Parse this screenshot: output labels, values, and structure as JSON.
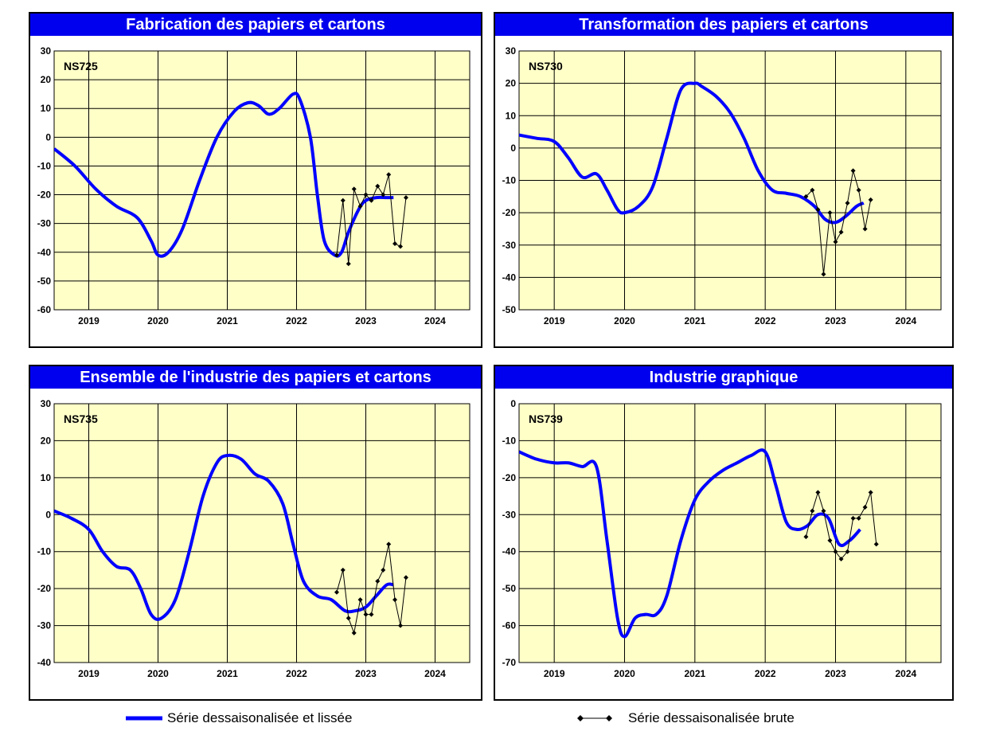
{
  "legend": {
    "smooth": "Série dessaisonalisée et lissée",
    "raw": "Série dessaisonalisée brute"
  },
  "colors": {
    "smooth": "#0000ff",
    "raw": "#000000",
    "plot_bg": "#ffffc8",
    "title_bg": "#0000ee"
  },
  "chart_data": [
    {
      "type": "line",
      "title": "Fabrication des papiers et cartons",
      "code": "NS725",
      "ylim": [
        -60,
        30
      ],
      "yticks": [
        30,
        20,
        10,
        0,
        -10,
        -20,
        -30,
        -40,
        -50,
        -60
      ],
      "xlim": [
        2018.5,
        2024.5
      ],
      "xtick_labels": [
        "2019",
        "2020",
        "2021",
        "2022",
        "2023",
        "2024"
      ],
      "grid": true,
      "series": [
        {
          "name": "Série dessaisonalisée et lissée",
          "style": "smooth",
          "x": [
            2018.5,
            2018.8,
            2019.1,
            2019.4,
            2019.7,
            2019.9,
            2020.0,
            2020.15,
            2020.35,
            2020.6,
            2020.85,
            2021.1,
            2021.3,
            2021.45,
            2021.6,
            2021.75,
            2021.95,
            2022.05,
            2022.2,
            2022.3,
            2022.4,
            2022.55,
            2022.65,
            2022.75,
            2022.9,
            2023.0,
            2023.15,
            2023.3,
            2023.4
          ],
          "y": [
            -4,
            -10,
            -18,
            -24,
            -28,
            -36,
            -41,
            -40,
            -32,
            -15,
            0,
            9,
            12,
            11,
            8,
            10,
            15,
            13,
            0,
            -20,
            -36,
            -41,
            -40,
            -33,
            -25,
            -22,
            -21,
            -21,
            -21
          ]
        },
        {
          "name": "Série dessaisonalisée brute",
          "style": "raw",
          "x": [
            2022.58,
            2022.67,
            2022.75,
            2022.83,
            2022.92,
            2023.0,
            2023.08,
            2023.17,
            2023.25,
            2023.33,
            2023.42,
            2023.5,
            2023.58,
            2023.67
          ],
          "y": [
            -41,
            -22,
            -44,
            -18,
            -24,
            -20,
            -22,
            -17,
            -20,
            -13,
            -37,
            -38,
            -21,
            null
          ]
        }
      ]
    },
    {
      "type": "line",
      "title": "Transformation des papiers et cartons",
      "code": "NS730",
      "ylim": [
        -50,
        30
      ],
      "yticks": [
        30,
        20,
        10,
        0,
        -10,
        -20,
        -30,
        -40,
        -50
      ],
      "xlim": [
        2018.5,
        2024.5
      ],
      "xtick_labels": [
        "2019",
        "2020",
        "2021",
        "2022",
        "2023",
        "2024"
      ],
      "grid": true,
      "series": [
        {
          "name": "Série dessaisonalisée et lissée",
          "style": "smooth",
          "x": [
            2018.5,
            2018.75,
            2019.0,
            2019.2,
            2019.4,
            2019.6,
            2019.75,
            2019.9,
            2020.0,
            2020.2,
            2020.4,
            2020.6,
            2020.8,
            2021.0,
            2021.1,
            2021.3,
            2021.5,
            2021.7,
            2021.9,
            2022.1,
            2022.3,
            2022.5,
            2022.7,
            2022.85,
            2023.0,
            2023.15,
            2023.3,
            2023.4
          ],
          "y": [
            4,
            3,
            2,
            -3,
            -9,
            -8,
            -13,
            -19,
            -20,
            -18,
            -12,
            3,
            18,
            20,
            19,
            16,
            11,
            3,
            -7,
            -13,
            -14,
            -15,
            -18,
            -22,
            -23,
            -21,
            -18,
            -17
          ]
        },
        {
          "name": "Série dessaisonalisée brute",
          "style": "raw",
          "x": [
            2022.58,
            2022.67,
            2022.75,
            2022.83,
            2022.92,
            2023.0,
            2023.08,
            2023.17,
            2023.25,
            2023.33,
            2023.42,
            2023.5,
            2023.58
          ],
          "y": [
            -15,
            -13,
            -19,
            -39,
            -20,
            -29,
            -26,
            -17,
            -7,
            -13,
            -25,
            -16,
            null
          ]
        }
      ]
    },
    {
      "type": "line",
      "title": "Ensemble de l'industrie des papiers et cartons",
      "code": "NS735",
      "ylim": [
        -40,
        30
      ],
      "yticks": [
        30,
        20,
        10,
        0,
        -10,
        -20,
        -30,
        -40
      ],
      "xlim": [
        2018.5,
        2024.5
      ],
      "xtick_labels": [
        "2019",
        "2020",
        "2021",
        "2022",
        "2023",
        "2024"
      ],
      "grid": true,
      "series": [
        {
          "name": "Série dessaisonalisée et lissée",
          "style": "smooth",
          "x": [
            2018.5,
            2018.75,
            2019.0,
            2019.2,
            2019.4,
            2019.6,
            2019.75,
            2019.9,
            2020.05,
            2020.25,
            2020.45,
            2020.65,
            2020.85,
            2021.0,
            2021.2,
            2021.4,
            2021.6,
            2021.8,
            2021.95,
            2022.1,
            2022.3,
            2022.5,
            2022.7,
            2022.85,
            2023.0,
            2023.15,
            2023.3,
            2023.4
          ],
          "y": [
            1,
            -1,
            -4,
            -10,
            -14,
            -15,
            -20,
            -27,
            -28,
            -23,
            -10,
            5,
            14,
            16,
            15,
            11,
            9,
            3,
            -8,
            -18,
            -22,
            -23,
            -26,
            -26,
            -25,
            -22,
            -19,
            -19
          ]
        },
        {
          "name": "Série dessaisonalisée brute",
          "style": "raw",
          "x": [
            2022.58,
            2022.67,
            2022.75,
            2022.83,
            2022.92,
            2023.0,
            2023.08,
            2023.17,
            2023.25,
            2023.33,
            2023.42,
            2023.5,
            2023.58
          ],
          "y": [
            -21,
            -15,
            -28,
            -32,
            -23,
            -27,
            -27,
            -18,
            -15,
            -8,
            -23,
            -30,
            -17
          ]
        }
      ]
    },
    {
      "type": "line",
      "title": "Industrie graphique",
      "code": "NS739",
      "ylim": [
        -70,
        0
      ],
      "yticks": [
        0,
        -10,
        -20,
        -30,
        -40,
        -50,
        -60,
        -70
      ],
      "xlim": [
        2018.5,
        2024.5
      ],
      "xtick_labels": [
        "2019",
        "2020",
        "2021",
        "2022",
        "2023",
        "2024"
      ],
      "grid": true,
      "series": [
        {
          "name": "Série dessaisonalisée et lissée",
          "style": "smooth",
          "x": [
            2018.5,
            2018.75,
            2019.0,
            2019.2,
            2019.4,
            2019.6,
            2019.75,
            2019.9,
            2020.0,
            2020.15,
            2020.3,
            2020.45,
            2020.6,
            2020.8,
            2021.0,
            2021.2,
            2021.4,
            2021.6,
            2021.8,
            2022.0,
            2022.15,
            2022.3,
            2022.45,
            2022.6,
            2022.75,
            2022.9,
            2023.05,
            2023.2,
            2023.35
          ],
          "y": [
            -13,
            -15,
            -16,
            -16,
            -17,
            -17,
            -37,
            -58,
            -63,
            -58,
            -57,
            -57,
            -52,
            -37,
            -26,
            -21,
            -18,
            -16,
            -14,
            -13,
            -22,
            -32,
            -34,
            -33,
            -30,
            -31,
            -38,
            -37,
            -34
          ]
        },
        {
          "name": "Série dessaisonalisée brute",
          "style": "raw",
          "x": [
            2022.58,
            2022.67,
            2022.75,
            2022.83,
            2022.92,
            2023.0,
            2023.08,
            2023.17,
            2023.25,
            2023.33,
            2023.42,
            2023.5,
            2023.58
          ],
          "y": [
            -36,
            -29,
            -24,
            -29,
            -37,
            -40,
            -42,
            -40,
            -31,
            -31,
            -28,
            -24,
            -38
          ]
        }
      ]
    }
  ]
}
